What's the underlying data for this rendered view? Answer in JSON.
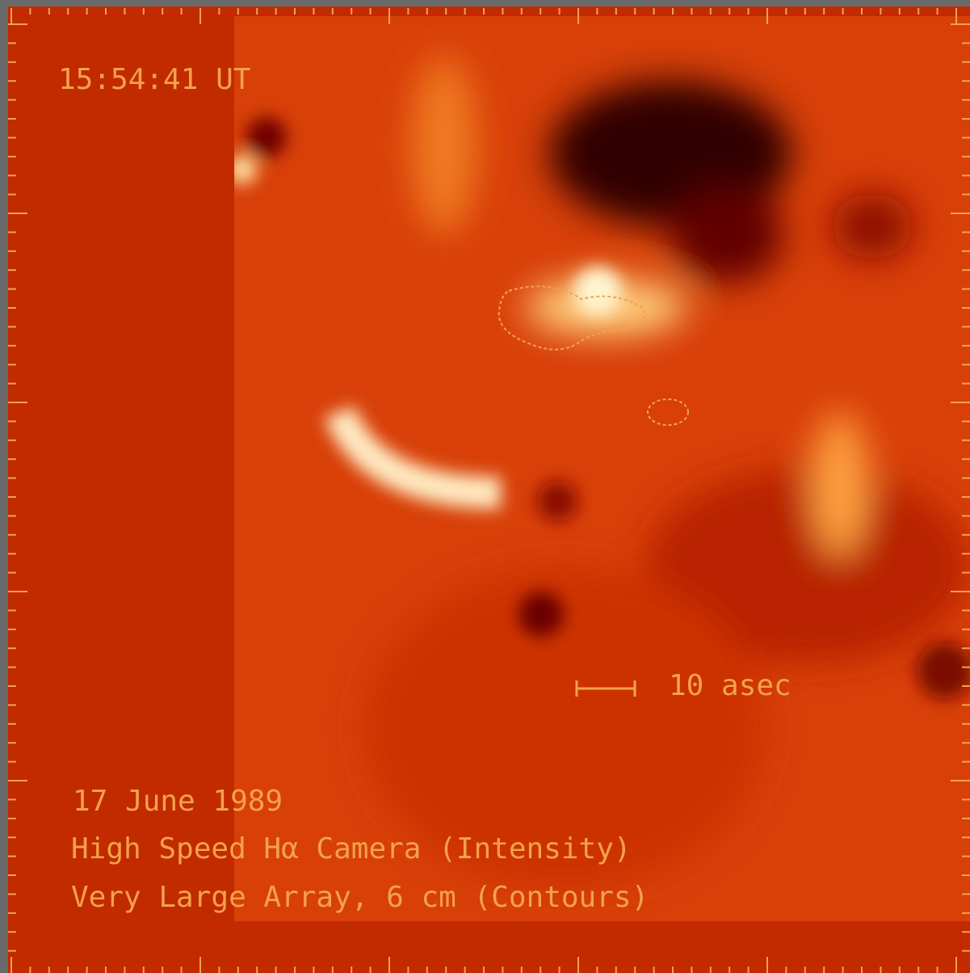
{
  "annotations": {
    "time": "15:54:41 UT",
    "scale": "10 asec",
    "date": "17 June 1989",
    "instrument": "High Speed Hα Camera (Intensity)",
    "contours": "Very Large Array, 6 cm (Contours)"
  }
}
